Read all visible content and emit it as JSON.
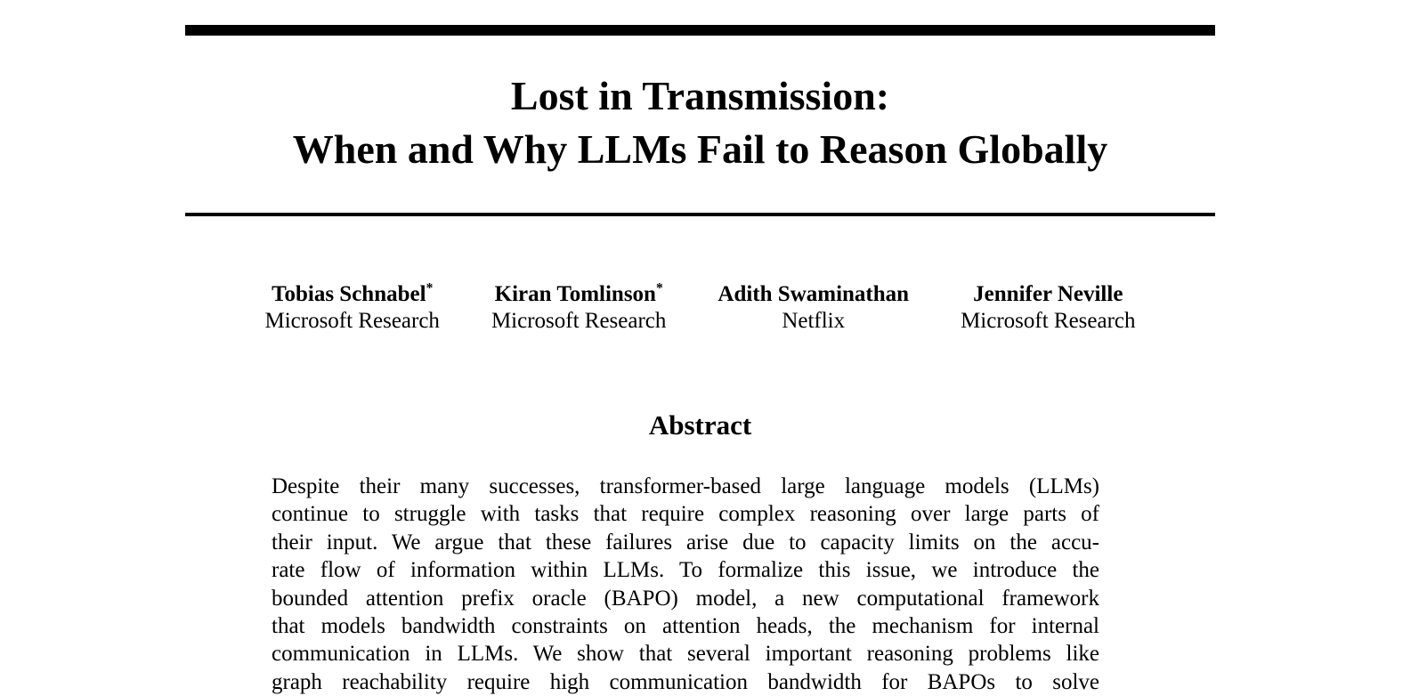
{
  "paper": {
    "title_line1": "Lost in Transmission:",
    "title_line2": "When and Why LLMs Fail to Reason Globally"
  },
  "authors": [
    {
      "name": "Tobias Schnabel",
      "mark": "*",
      "affiliation": "Microsoft Research"
    },
    {
      "name": "Kiran Tomlinson",
      "mark": "*",
      "affiliation": "Microsoft Research"
    },
    {
      "name": "Adith Swaminathan",
      "mark": "",
      "affiliation": "Netflix"
    },
    {
      "name": "Jennifer Neville",
      "mark": "",
      "affiliation": "Microsoft Research"
    }
  ],
  "abstract": {
    "heading": "Abstract",
    "lines": [
      "Despite their many successes, transformer-based large language models (LLMs)",
      "continue to struggle with tasks that require complex reasoning over large parts of",
      "their input. We argue that these failures arise due to capacity limits on the accu-",
      "rate flow of information within LLMs. To formalize this issue, we introduce the",
      "bounded attention prefix oracle (BAPO) model, a new computational framework",
      "that models bandwidth constraints on attention heads, the mechanism for internal",
      "communication in LLMs. We show that several important reasoning problems like",
      "graph reachability require high communication bandwidth for BAPOs to solve"
    ]
  },
  "colors": {
    "text": "#000000",
    "background": "#ffffff",
    "rule": "#000000"
  }
}
